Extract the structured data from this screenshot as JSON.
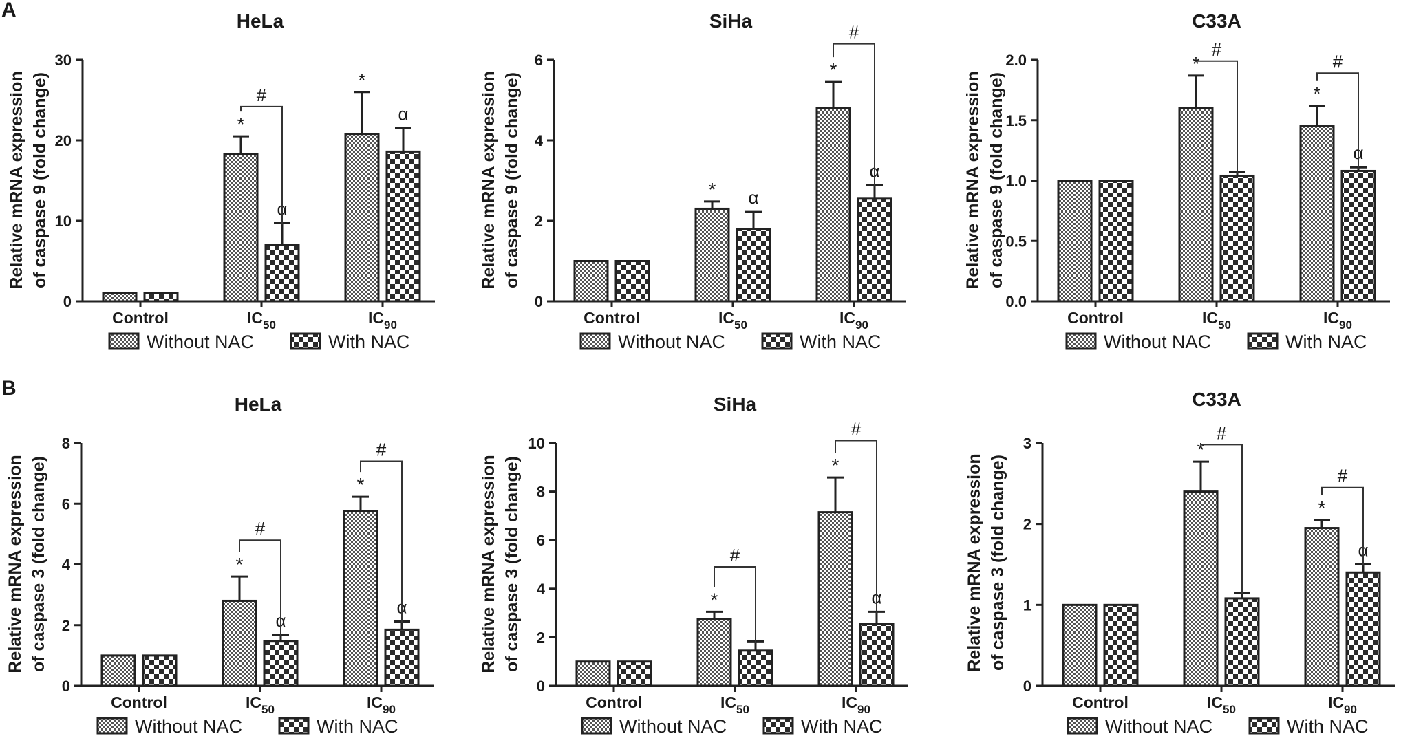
{
  "panels": [
    {
      "letter": "A"
    },
    {
      "letter": "B"
    }
  ],
  "legend": {
    "without": "Without NAC",
    "with": "With NAC"
  },
  "significance_marks": {
    "star": "*",
    "hash": "#",
    "alpha": "α"
  },
  "ic_prefix": "IC",
  "chart_data": [
    {
      "type": "bar",
      "panel": "A",
      "title": "HeLa",
      "ylabel": "Relative mRNA expression of caspase 9 (fold change)",
      "categories": [
        "Control",
        "IC50",
        "IC90"
      ],
      "category_labels": [
        "Control",
        "50",
        "90"
      ],
      "ylim": [
        0,
        30
      ],
      "yticks": [
        0,
        10,
        20,
        30
      ],
      "ytick_labels": [
        "0",
        "10",
        "20",
        "30"
      ],
      "series": [
        {
          "name": "Without NAC",
          "values": [
            1.0,
            18.3,
            20.8
          ],
          "errors": [
            0,
            2.2,
            5.2
          ]
        },
        {
          "name": "With NAC",
          "values": [
            1.0,
            7.0,
            18.6
          ],
          "errors": [
            0,
            2.7,
            2.9
          ]
        }
      ],
      "marks": [
        {
          "type": "star",
          "group": 1,
          "bar": 0
        },
        {
          "type": "alpha",
          "group": 1,
          "bar": 1
        },
        {
          "type": "star",
          "group": 2,
          "bar": 0
        },
        {
          "type": "alpha",
          "group": 2,
          "bar": 1
        },
        {
          "type": "hash",
          "group": 1,
          "y": 24.2
        }
      ]
    },
    {
      "type": "bar",
      "panel": "A",
      "title": "SiHa",
      "ylabel": "Relative mRNA expression of caspase 9 (fold change)",
      "categories": [
        "Control",
        "IC50",
        "IC90"
      ],
      "category_labels": [
        "Control",
        "50",
        "90"
      ],
      "ylim": [
        0,
        6
      ],
      "yticks": [
        0,
        2,
        4,
        6
      ],
      "ytick_labels": [
        "0",
        "2",
        "4",
        "6"
      ],
      "series": [
        {
          "name": "Without NAC",
          "values": [
            1.0,
            2.3,
            4.8
          ],
          "errors": [
            0,
            0.18,
            0.65
          ]
        },
        {
          "name": "With NAC",
          "values": [
            1.0,
            1.8,
            2.55
          ],
          "errors": [
            0,
            0.42,
            0.33
          ]
        }
      ],
      "marks": [
        {
          "type": "star",
          "group": 1,
          "bar": 0
        },
        {
          "type": "alpha",
          "group": 1,
          "bar": 1
        },
        {
          "type": "star",
          "group": 2,
          "bar": 0
        },
        {
          "type": "alpha",
          "group": 2,
          "bar": 1
        },
        {
          "type": "hash",
          "group": 2,
          "y": 6.4
        }
      ]
    },
    {
      "type": "bar",
      "panel": "A",
      "title": "C33A",
      "ylabel": "Relative mRNA expression of caspase 9 (fold change)",
      "categories": [
        "Control",
        "IC50",
        "IC90"
      ],
      "category_labels": [
        "Control",
        "50",
        "90"
      ],
      "ylim": [
        0,
        2.0
      ],
      "yticks": [
        0,
        0.5,
        1.0,
        1.5,
        2.0
      ],
      "ytick_labels": [
        "0.0",
        "0.5",
        "1.0",
        "1.5",
        "2.0"
      ],
      "series": [
        {
          "name": "Without NAC",
          "values": [
            1.0,
            1.6,
            1.45
          ],
          "errors": [
            0,
            0.27,
            0.17
          ]
        },
        {
          "name": "With NAC",
          "values": [
            1.0,
            1.04,
            1.08
          ],
          "errors": [
            0,
            0.03,
            0.03
          ]
        }
      ],
      "marks": [
        {
          "type": "star",
          "group": 1,
          "bar": 0
        },
        {
          "type": "star",
          "group": 2,
          "bar": 0
        },
        {
          "type": "alpha",
          "group": 2,
          "bar": 1
        },
        {
          "type": "hash",
          "group": 1,
          "y": 1.99
        },
        {
          "type": "hash",
          "group": 2,
          "y": 1.89
        }
      ]
    },
    {
      "type": "bar",
      "panel": "B",
      "title": "HeLa",
      "ylabel": "Relative mRNA expression of caspase 3 (fold change)",
      "categories": [
        "Control",
        "IC50",
        "IC90"
      ],
      "category_labels": [
        "Control",
        "50",
        "90"
      ],
      "ylim": [
        0,
        8
      ],
      "yticks": [
        0,
        2,
        4,
        6,
        8
      ],
      "ytick_labels": [
        "0",
        "2",
        "4",
        "6",
        "8"
      ],
      "series": [
        {
          "name": "Without NAC",
          "values": [
            1.0,
            2.8,
            5.75
          ],
          "errors": [
            0,
            0.8,
            0.48
          ]
        },
        {
          "name": "With NAC",
          "values": [
            1.0,
            1.48,
            1.85
          ],
          "errors": [
            0,
            0.2,
            0.27
          ]
        }
      ],
      "marks": [
        {
          "type": "star",
          "group": 1,
          "bar": 0
        },
        {
          "type": "alpha",
          "group": 1,
          "bar": 1
        },
        {
          "type": "star",
          "group": 2,
          "bar": 0
        },
        {
          "type": "alpha",
          "group": 2,
          "bar": 1
        },
        {
          "type": "hash",
          "group": 1,
          "y": 4.8
        },
        {
          "type": "hash",
          "group": 2,
          "y": 7.4
        }
      ]
    },
    {
      "type": "bar",
      "panel": "B",
      "title": "SiHa",
      "ylabel": "Relative mRNA expression of caspase 3 (fold change)",
      "categories": [
        "Control",
        "IC50",
        "IC90"
      ],
      "category_labels": [
        "Control",
        "50",
        "90"
      ],
      "ylim": [
        0,
        10
      ],
      "yticks": [
        0,
        2,
        4,
        6,
        8,
        10
      ],
      "ytick_labels": [
        "0",
        "2",
        "4",
        "6",
        "8",
        "10"
      ],
      "series": [
        {
          "name": "Without NAC",
          "values": [
            1.0,
            2.75,
            7.15
          ],
          "errors": [
            0,
            0.3,
            1.43
          ]
        },
        {
          "name": "With NAC",
          "values": [
            1.0,
            1.45,
            2.55
          ],
          "errors": [
            0,
            0.38,
            0.5
          ]
        }
      ],
      "marks": [
        {
          "type": "star",
          "group": 1,
          "bar": 0
        },
        {
          "type": "star",
          "group": 2,
          "bar": 0
        },
        {
          "type": "alpha",
          "group": 2,
          "bar": 1
        },
        {
          "type": "hash",
          "group": 1,
          "y": 4.9
        },
        {
          "type": "hash",
          "group": 2,
          "y": 10.1
        }
      ]
    },
    {
      "type": "bar",
      "panel": "B",
      "title": "C33A",
      "ylabel": "Relative mRNA expression of caspase 3 (fold change)",
      "categories": [
        "Control",
        "IC50",
        "IC90"
      ],
      "category_labels": [
        "Control",
        "50",
        "90"
      ],
      "ylim": [
        0,
        3
      ],
      "yticks": [
        0,
        1,
        2,
        3
      ],
      "ytick_labels": [
        "0",
        "1",
        "2",
        "3"
      ],
      "series": [
        {
          "name": "Without NAC",
          "values": [
            1.0,
            2.4,
            1.95
          ],
          "errors": [
            0,
            0.37,
            0.1
          ]
        },
        {
          "name": "With NAC",
          "values": [
            1.0,
            1.08,
            1.4
          ],
          "errors": [
            0,
            0.07,
            0.1
          ]
        }
      ],
      "marks": [
        {
          "type": "star",
          "group": 1,
          "bar": 0
        },
        {
          "type": "star",
          "group": 2,
          "bar": 0
        },
        {
          "type": "alpha",
          "group": 2,
          "bar": 1
        },
        {
          "type": "hash",
          "group": 1,
          "y": 2.98
        },
        {
          "type": "hash",
          "group": 2,
          "y": 2.45
        }
      ]
    }
  ]
}
